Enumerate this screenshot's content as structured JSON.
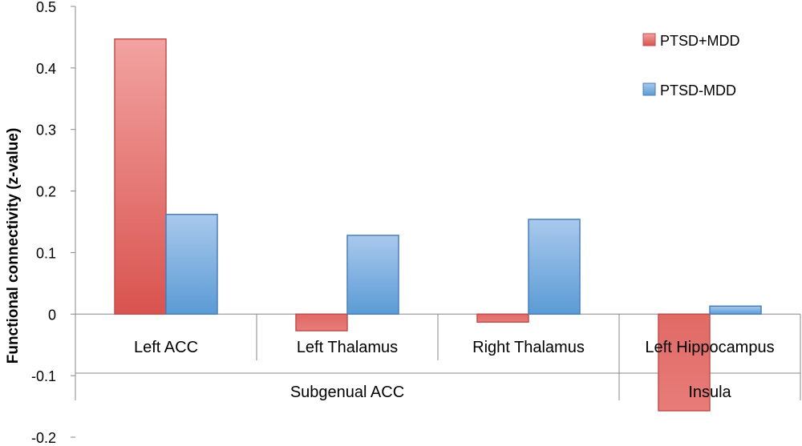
{
  "chart_data": {
    "type": "bar",
    "ylabel": "Functional connectivity (z-value)",
    "ylim": [
      -0.2,
      0.5
    ],
    "yticks": [
      "0.5",
      "0.4",
      "0.3",
      "0.2",
      "0.1",
      "0",
      "-0.1",
      "-0.2"
    ],
    "ytick_values": [
      0.5,
      0.4,
      0.3,
      0.2,
      0.1,
      0,
      -0.1,
      -0.2
    ],
    "categories": [
      "Left ACC",
      "Left Thalamus",
      "Right Thalamus",
      "Left Hippocampus"
    ],
    "groups": [
      {
        "label": "Subgenual ACC",
        "categories": [
          "Left ACC",
          "Left Thalamus",
          "Right Thalamus"
        ]
      },
      {
        "label": "Insula",
        "categories": [
          "Left Hippocampus"
        ]
      }
    ],
    "series": [
      {
        "name": "PTSD+MDD",
        "values": [
          0.447,
          -0.027,
          -0.013,
          -0.157
        ],
        "color": "#d9534f"
      },
      {
        "name": "PTSD-MDD",
        "values": [
          0.162,
          0.128,
          0.154,
          0.013
        ],
        "color": "#5b9bd5"
      }
    ],
    "legend_position": "top-right",
    "grid": false
  }
}
